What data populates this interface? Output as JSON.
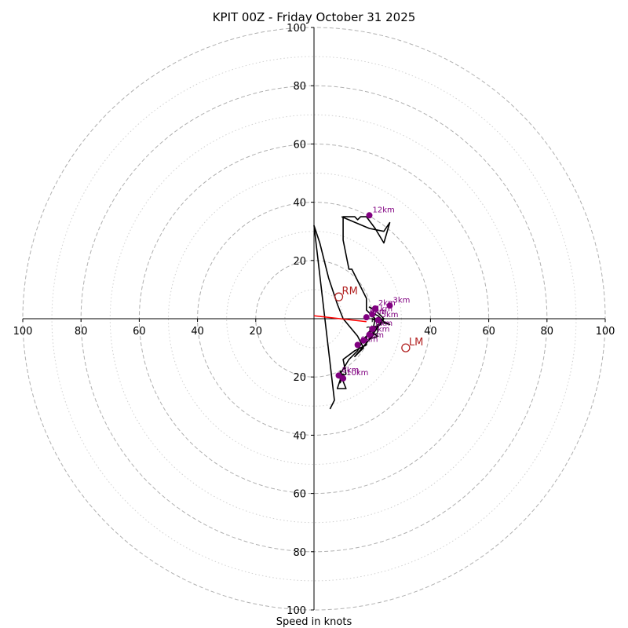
{
  "chart_data": {
    "type": "line",
    "title": "KPIT 00Z - Friday October 31 2025",
    "xlabel": "Speed in knots",
    "ylabel": "",
    "range": [
      -100,
      100
    ],
    "ring_major_step": 20,
    "ring_minor_step": 10,
    "axis_ticks": [
      "100",
      "80",
      "60",
      "40",
      "20",
      "20",
      "40",
      "60",
      "80",
      "100"
    ],
    "axis_tick_values": [
      -100,
      -80,
      -60,
      -40,
      -20,
      20,
      40,
      60,
      80,
      100
    ],
    "hodograph": {
      "name": "wind",
      "color": "#000000",
      "u": [
        5.5,
        7,
        0,
        0,
        2,
        5,
        8,
        10,
        15,
        17,
        14,
        20,
        22,
        17,
        15,
        12,
        9,
        11,
        8,
        9,
        9,
        10,
        9,
        10,
        9,
        9,
        11,
        10,
        14,
        18,
        18,
        20,
        23,
        20,
        22,
        26,
        24,
        22,
        20,
        21,
        19,
        22,
        24,
        19,
        22,
        20,
        21,
        18,
        18,
        13,
        12,
        10,
        10,
        14,
        15,
        16,
        18,
        21,
        24,
        26,
        24,
        19,
        9.5,
        9.5
      ],
      "v": [
        -31,
        -28,
        32,
        32,
        26,
        14,
        5,
        0,
        -6,
        -10,
        -13,
        -6,
        -2,
        -7,
        -11,
        -14,
        -19,
        -24,
        -24,
        -21,
        -18,
        -20,
        -21,
        -19,
        -22,
        -20,
        -19,
        -14,
        -11,
        -9,
        -6,
        -3,
        -2,
        0,
        -1,
        -2,
        -1,
        1,
        2,
        3,
        4,
        2,
        0,
        -7,
        -6,
        -5,
        0,
        3,
        7,
        17,
        17,
        27,
        35,
        35,
        34,
        35,
        35,
        31,
        26,
        33,
        30,
        31,
        35,
        35
      ]
    },
    "height_markers": [
      {
        "label": "3km",
        "u": 26,
        "v": 4.5
      },
      {
        "label": "2km",
        "u": 21,
        "v": 3.5
      },
      {
        "label": "1km",
        "u": 20,
        "v": 1.5
      },
      {
        "label": "5km",
        "u": 22,
        "v": -0.5
      },
      {
        "label": "6km",
        "u": 18,
        "v": 0.5
      },
      {
        "label": "0km",
        "u": 20,
        "v": -3.5
      },
      {
        "label": "7km",
        "u": 19,
        "v": -5.5
      },
      {
        "label": "4km",
        "u": 17,
        "v": -7.5
      },
      {
        "label": "9km",
        "u": 15,
        "v": -9
      },
      {
        "label": "8km",
        "u": 8.5,
        "v": -19.5
      },
      {
        "label": "10km",
        "u": 10,
        "v": -20.5
      },
      {
        "label": "12km",
        "u": 19,
        "v": 35.5
      }
    ],
    "storm_motion": [
      {
        "label": "RM",
        "u": 8.5,
        "v": 7.5
      },
      {
        "label": "LM",
        "u": 31.5,
        "v": -10
      }
    ],
    "mean_wind_vector": {
      "u": 18,
      "v": -1,
      "from_u": 0,
      "from_v": 1,
      "color": "#ff0000"
    },
    "grid": true,
    "colors": {
      "ring": "#b0b0b0",
      "axis": "#000000",
      "marker": "#800080",
      "storm": "#b22222"
    }
  }
}
